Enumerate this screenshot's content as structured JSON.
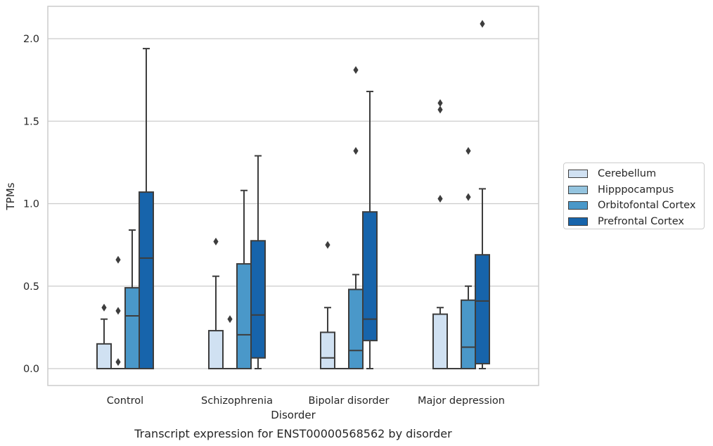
{
  "chart_data": {
    "type": "box",
    "title": "Transcript expression for ENST00000568562 by disorder",
    "xlabel": "Disorder",
    "ylabel": "TPMs",
    "ylim": [
      -0.1,
      2.2
    ],
    "yticks": [
      "0.0",
      "0.5",
      "1.0",
      "1.5",
      "2.0"
    ],
    "grid": "horizontal",
    "legend_position": "outside-right",
    "categories": [
      "Control",
      "Schizophrenia",
      "Bipolar disorder",
      "Major depression"
    ],
    "series": [
      {
        "name": "Cerebellum",
        "color": "#d0e1f2",
        "boxes": [
          {
            "whisker_low": 0,
            "q1": 0,
            "median": 0,
            "q3": 0.15,
            "whisker_high": 0.3,
            "outliers": [
              0.37
            ]
          },
          {
            "whisker_low": 0,
            "q1": 0,
            "median": 0,
            "q3": 0.23,
            "whisker_high": 0.56,
            "outliers": [
              0.77
            ]
          },
          {
            "whisker_low": 0,
            "q1": 0,
            "median": 0.065,
            "q3": 0.22,
            "whisker_high": 0.37,
            "outliers": [
              0.75
            ]
          },
          {
            "whisker_low": 0,
            "q1": 0,
            "median": 0,
            "q3": 0.33,
            "whisker_high": 0.37,
            "outliers": [
              1.03,
              1.57,
              1.61
            ]
          }
        ]
      },
      {
        "name": "Hipppocampus",
        "color": "#94c4df",
        "boxes": [
          {
            "whisker_low": 0,
            "q1": 0,
            "median": 0,
            "q3": 0,
            "whisker_high": 0,
            "outliers": [
              0.04,
              0.35,
              0.66
            ]
          },
          {
            "whisker_low": 0,
            "q1": 0,
            "median": 0,
            "q3": 0,
            "whisker_high": 0,
            "outliers": [
              0.3
            ]
          },
          {
            "whisker_low": 0,
            "q1": 0,
            "median": 0,
            "q3": 0,
            "whisker_high": 0,
            "outliers": []
          },
          {
            "whisker_low": 0,
            "q1": 0,
            "median": 0,
            "q3": 0,
            "whisker_high": 0,
            "outliers": []
          }
        ]
      },
      {
        "name": "Orbitofontal Cortex",
        "color": "#4a98c9",
        "boxes": [
          {
            "whisker_low": 0,
            "q1": 0,
            "median": 0.32,
            "q3": 0.49,
            "whisker_high": 0.84,
            "outliers": []
          },
          {
            "whisker_low": 0,
            "q1": 0,
            "median": 0.205,
            "q3": 0.635,
            "whisker_high": 1.08,
            "outliers": []
          },
          {
            "whisker_low": 0,
            "q1": 0,
            "median": 0.11,
            "q3": 0.48,
            "whisker_high": 0.57,
            "outliers": [
              1.32,
              1.81
            ]
          },
          {
            "whisker_low": 0,
            "q1": 0,
            "median": 0.13,
            "q3": 0.415,
            "whisker_high": 0.5,
            "outliers": [
              1.04,
              1.32
            ]
          }
        ]
      },
      {
        "name": "Prefrontal Cortex",
        "color": "#1764ab",
        "boxes": [
          {
            "whisker_low": 0,
            "q1": 0,
            "median": 0.67,
            "q3": 1.07,
            "whisker_high": 1.94,
            "outliers": []
          },
          {
            "whisker_low": 0,
            "q1": 0.065,
            "median": 0.325,
            "q3": 0.775,
            "whisker_high": 1.29,
            "outliers": []
          },
          {
            "whisker_low": 0,
            "q1": 0.17,
            "median": 0.3,
            "q3": 0.95,
            "whisker_high": 1.68,
            "outliers": []
          },
          {
            "whisker_low": 0,
            "q1": 0.03,
            "median": 0.41,
            "q3": 0.69,
            "whisker_high": 1.09,
            "outliers": [
              2.09
            ]
          }
        ]
      }
    ],
    "colors": {
      "grid": "#cccccc",
      "frame": "#cccccc",
      "edge": "#3d3d3d"
    }
  }
}
